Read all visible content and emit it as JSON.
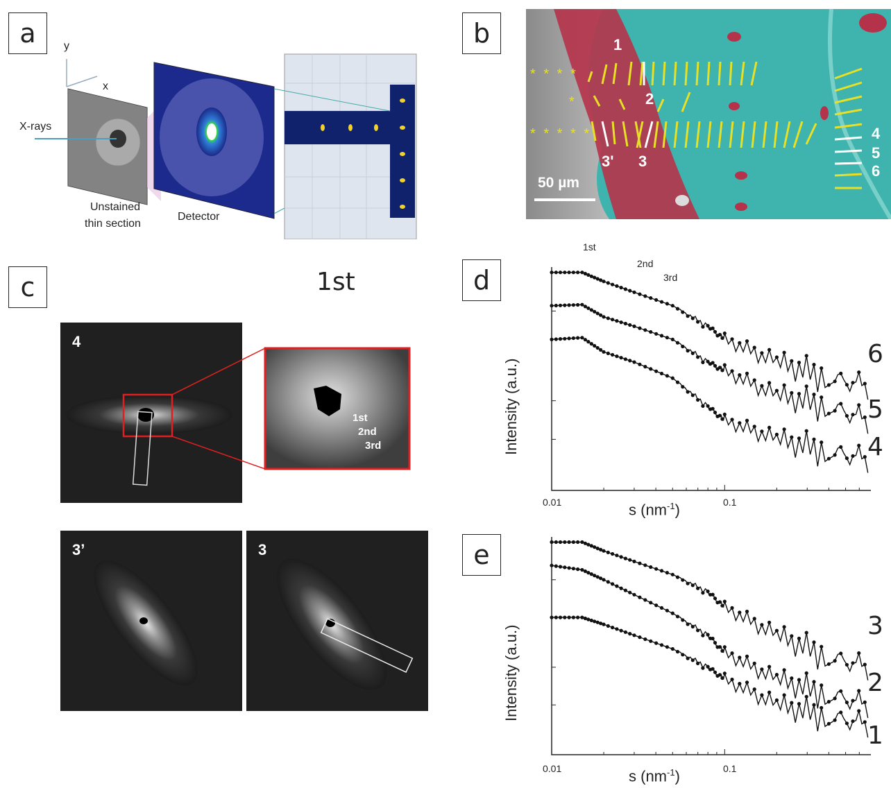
{
  "panels": {
    "a": {
      "label": "a",
      "axis_y": "y",
      "axis_x": "x",
      "xrays_label": "X-rays",
      "section_label_line1": "Unstained",
      "section_label_line2": "thin section",
      "detector_label": "Detector"
    },
    "b": {
      "label": "b",
      "markers": [
        "1",
        "2",
        "3'",
        "3",
        "4",
        "5",
        "6"
      ],
      "scale_bar": "50 µm",
      "stars_row1": "* * * *",
      "stars_row2": "*",
      "stars_row3": "* * * * *",
      "colors": {
        "red_region": "#b5334a",
        "teal_region": "#3fb3ad",
        "lines": "#e8e025"
      }
    },
    "c": {
      "label": "c",
      "floating_text": "1st",
      "frame_top_label": "4",
      "inset_peaks": [
        "1st",
        "2nd",
        "3rd"
      ],
      "bottom_left_label": "3’",
      "bottom_right_label": "3"
    },
    "d": {
      "label": "d",
      "peak_labels": [
        "1st",
        "2nd",
        "3rd"
      ],
      "ylabel": "Intensity (a.u.)",
      "xlabel_base": "s (nm",
      "xlabel_sup": "-1",
      "xlabel_end": ")",
      "xticks": [
        "0.01",
        "0.1"
      ],
      "curve_labels": [
        "6",
        "5",
        "4"
      ]
    },
    "e": {
      "label": "e",
      "ylabel": "Intensity (a.u.)",
      "xlabel_base": "s (nm",
      "xlabel_sup": "-1",
      "xlabel_end": ")",
      "xticks": [
        "0.01",
        "0.1"
      ],
      "curve_labels": [
        "3",
        "2",
        "1"
      ]
    }
  },
  "chart_data": [
    {
      "type": "line",
      "panel": "d",
      "xlabel": "s (nm-1)",
      "ylabel": "Intensity (a.u.)",
      "xscale": "log",
      "yscale": "log",
      "xlim": [
        0.01,
        0.7
      ],
      "series": [
        {
          "name": "6",
          "x": [
            0.01,
            0.015,
            0.02,
            0.03,
            0.05,
            0.08,
            0.1,
            0.2,
            0.4,
            0.7
          ],
          "y": [
            1.0,
            1.0,
            0.85,
            0.7,
            0.55,
            0.38,
            0.3,
            0.2,
            0.15,
            0.13
          ]
        },
        {
          "name": "5",
          "x": [
            0.01,
            0.015,
            0.02,
            0.03,
            0.05,
            0.08,
            0.1,
            0.2,
            0.4,
            0.7
          ],
          "y": [
            0.55,
            0.56,
            0.45,
            0.38,
            0.3,
            0.2,
            0.17,
            0.11,
            0.09,
            0.07
          ]
        },
        {
          "name": "4",
          "x": [
            0.01,
            0.015,
            0.02,
            0.03,
            0.05,
            0.08,
            0.1,
            0.2,
            0.4,
            0.7
          ],
          "y": [
            0.3,
            0.31,
            0.24,
            0.2,
            0.15,
            0.09,
            0.07,
            0.05,
            0.04,
            0.035
          ]
        }
      ]
    },
    {
      "type": "line",
      "panel": "e",
      "xlabel": "s (nm-1)",
      "ylabel": "Intensity (a.u.)",
      "xscale": "log",
      "yscale": "log",
      "xlim": [
        0.01,
        0.7
      ],
      "series": [
        {
          "name": "3",
          "x": [
            0.01,
            0.015,
            0.02,
            0.03,
            0.05,
            0.08,
            0.1,
            0.2,
            0.4,
            0.7
          ],
          "y": [
            1.0,
            1.0,
            0.85,
            0.7,
            0.55,
            0.4,
            0.3,
            0.18,
            0.12,
            0.1
          ]
        },
        {
          "name": "2",
          "x": [
            0.01,
            0.015,
            0.02,
            0.03,
            0.05,
            0.08,
            0.1,
            0.2,
            0.4,
            0.7
          ],
          "y": [
            0.65,
            0.6,
            0.5,
            0.38,
            0.27,
            0.18,
            0.13,
            0.08,
            0.06,
            0.05
          ]
        },
        {
          "name": "1",
          "x": [
            0.01,
            0.015,
            0.02,
            0.03,
            0.05,
            0.08,
            0.1,
            0.2,
            0.4,
            0.7
          ],
          "y": [
            0.25,
            0.25,
            0.22,
            0.18,
            0.14,
            0.1,
            0.08,
            0.05,
            0.04,
            0.035
          ]
        }
      ]
    }
  ]
}
